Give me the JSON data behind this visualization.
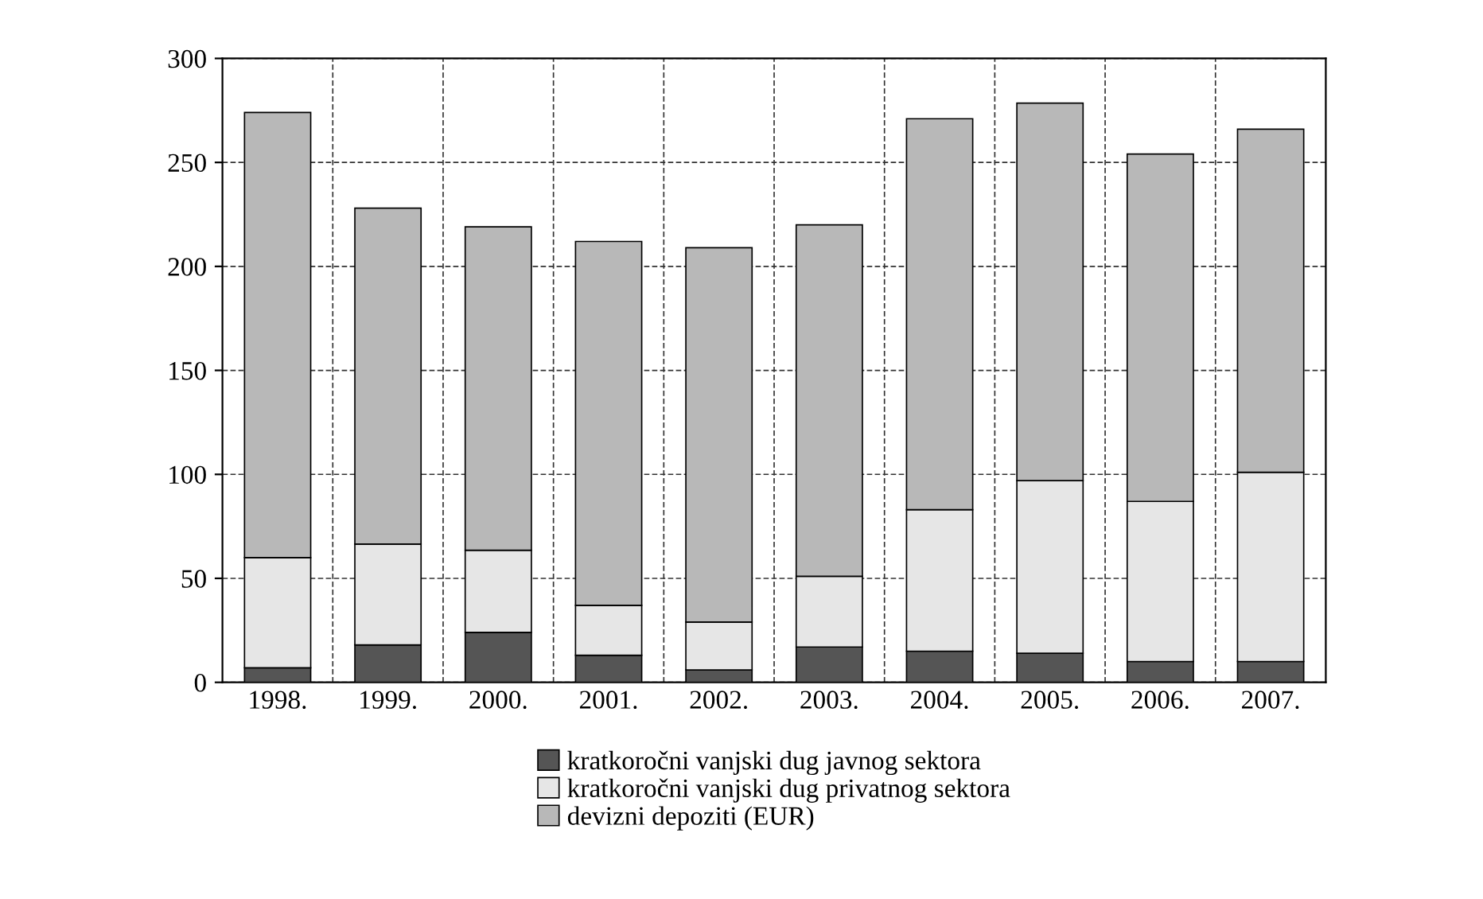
{
  "chart_data": {
    "type": "bar",
    "stacked": true,
    "categories": [
      "1998.",
      "1999.",
      "2000.",
      "2001.",
      "2002.",
      "2003.",
      "2004.",
      "2005.",
      "2006.",
      "2007."
    ],
    "series": [
      {
        "name": "kratkoročni vanjski dug javnog sektora",
        "color": "#555555",
        "values": [
          7,
          18,
          24,
          13,
          6,
          17,
          15,
          14,
          10,
          10
        ]
      },
      {
        "name": "kratkoročni vanjski dug privatnog sektora",
        "color": "#e6e6e6",
        "values": [
          53,
          48.5,
          39.5,
          24,
          23,
          34,
          68,
          83,
          77,
          91
        ]
      },
      {
        "name": "devizni depoziti (EUR)",
        "color": "#b8b8b8",
        "values": [
          214,
          161.5,
          155.5,
          175,
          180,
          169,
          188,
          181.5,
          167,
          165
        ]
      }
    ],
    "ylim": [
      0,
      300
    ],
    "yticks": [
      0,
      50,
      100,
      150,
      200,
      250,
      300
    ],
    "grid": true,
    "legend": "bottom"
  }
}
